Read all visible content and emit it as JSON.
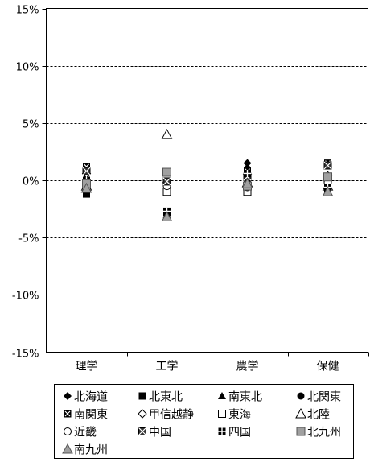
{
  "chart_data": {
    "type": "scatter",
    "categories": [
      "理学",
      "工学",
      "農学",
      "保健"
    ],
    "ylim": [
      -15,
      15
    ],
    "yticks": [
      15,
      10,
      5,
      0,
      -5,
      -10,
      -15
    ],
    "ytick_labels": [
      "15%",
      "10%",
      "5%",
      "0%",
      "-5%",
      "-10%",
      "-15%"
    ],
    "grid": "horizontal dashed",
    "legend_position": "bottom",
    "series": [
      {
        "name": "北海道",
        "marker": "diamond-filled",
        "values": [
          0.5,
          -0.5,
          1.5,
          -0.3
        ]
      },
      {
        "name": "北東北",
        "marker": "square-filled",
        "values": [
          -1.2,
          -2.8,
          0.2,
          -0.8
        ]
      },
      {
        "name": "南東北",
        "marker": "triangle-filled",
        "values": [
          0.3,
          -3.0,
          0.4,
          -0.5
        ]
      },
      {
        "name": "北関東",
        "marker": "circle-filled",
        "values": [
          -0.3,
          -0.3,
          1.0,
          -0.3
        ]
      },
      {
        "name": "南関東",
        "marker": "square-x",
        "values": [
          1.2,
          -0.3,
          0.8,
          1.5
        ]
      },
      {
        "name": "甲信越静",
        "marker": "diamond-open",
        "values": [
          0.6,
          -0.2,
          0.5,
          0.4
        ]
      },
      {
        "name": "東海",
        "marker": "square-open",
        "values": [
          -0.6,
          -1.0,
          -1.0,
          0.2
        ]
      },
      {
        "name": "北陸",
        "marker": "triangle-open",
        "values": [
          -0.5,
          4.0,
          -0.2,
          -0.5
        ]
      },
      {
        "name": "近畿",
        "marker": "circle-open",
        "values": [
          -0.2,
          -0.5,
          -0.6,
          -0.2
        ]
      },
      {
        "name": "中国",
        "marker": "square-x-filled",
        "values": [
          0.8,
          -0.1,
          0.3,
          1.3
        ]
      },
      {
        "name": "四国",
        "marker": "square-cross",
        "values": [
          0.0,
          -2.7,
          0.6,
          -0.6
        ]
      },
      {
        "name": "北九州",
        "marker": "square-gray",
        "values": [
          -0.3,
          0.7,
          -0.5,
          0.3
        ]
      },
      {
        "name": "南九州",
        "marker": "triangle-gray",
        "values": [
          -0.7,
          -3.2,
          -0.3,
          -1.0
        ]
      }
    ]
  }
}
